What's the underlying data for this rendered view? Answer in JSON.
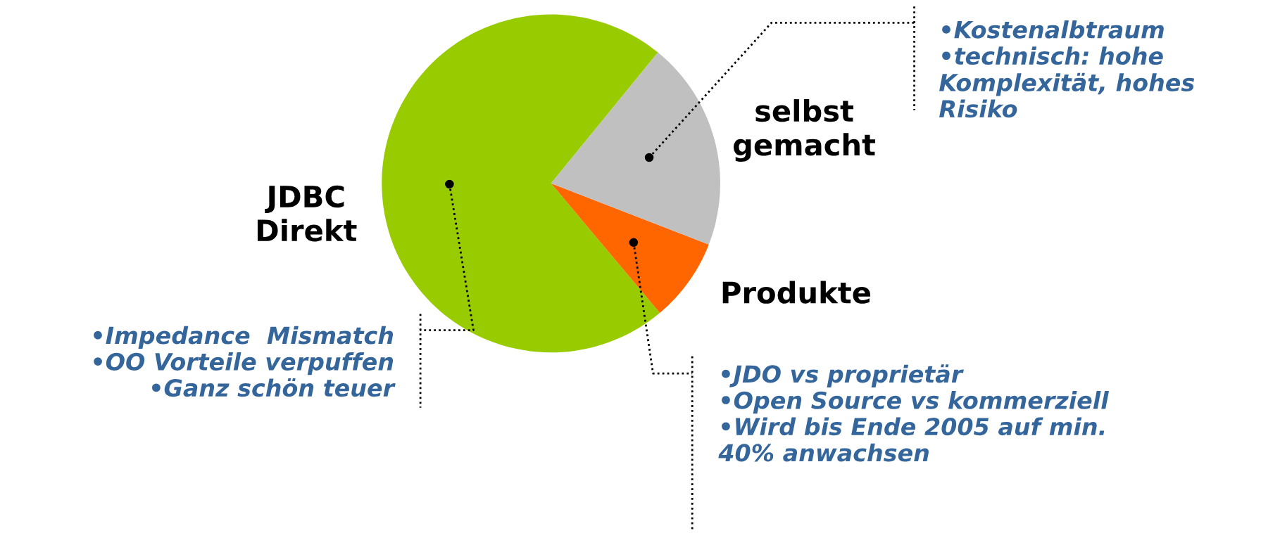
{
  "chart_data": {
    "type": "pie",
    "categories": [
      "JDBC\nDirekt",
      "Produkte",
      "selbst\ngemacht"
    ],
    "values": [
      72,
      8,
      20
    ],
    "colors": [
      "#99cc00",
      "#ff6600",
      "#c0c0c0"
    ],
    "annotations": [
      "•Kostenalbtraum\n•technisch: hohe\nKomplexität, hohes\nRisiko",
      "•Impedance  Mismatch\n•OO Vorteile verpuffen\n•Ganz schön teuer",
      "•JDO vs proprietär\n•Open Source vs kommerziell\n•Wird bis Ende 2005 auf min.\n40% anwachsen"
    ]
  }
}
